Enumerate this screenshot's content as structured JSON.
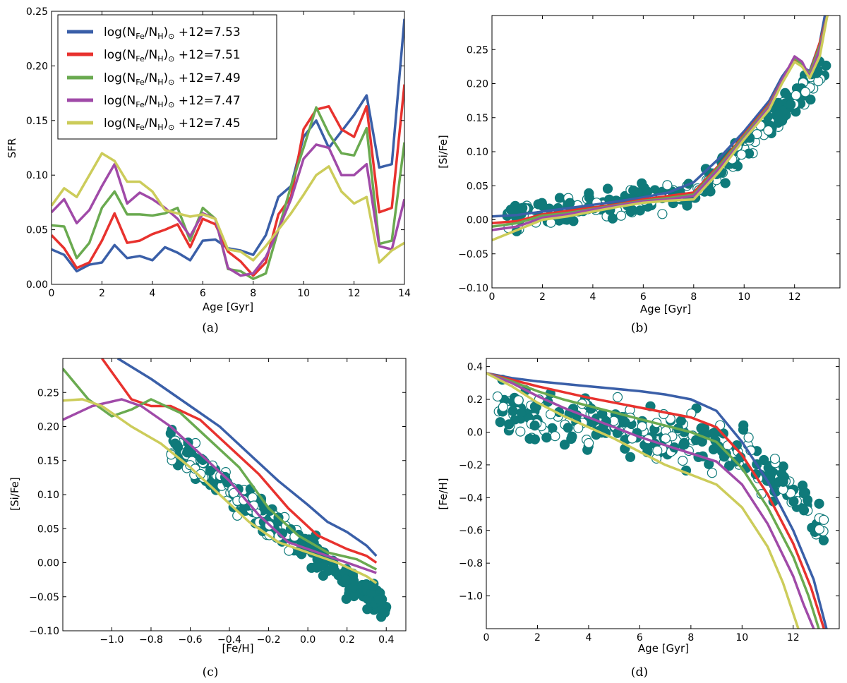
{
  "colors": {
    "blue": "#3a5fa8",
    "red": "#e8322e",
    "green": "#6aaa50",
    "purple": "#a04aa8",
    "yellow": "#cccc5a",
    "teal": "#0f7a7a"
  },
  "legend": {
    "prefix": "log(N",
    "entries": [
      {
        "value": "7.53",
        "color": "blue"
      },
      {
        "value": "7.51",
        "color": "red"
      },
      {
        "value": "7.49",
        "color": "green"
      },
      {
        "value": "7.47",
        "color": "purple"
      },
      {
        "value": "7.45",
        "color": "yellow"
      }
    ]
  },
  "chart_data": [
    {
      "id": "a",
      "caption": "(a)",
      "type": "line",
      "xlabel": "Age [Gyr]",
      "ylabel": "SFR",
      "xlim": [
        0,
        14
      ],
      "ylim": [
        0,
        0.25
      ],
      "xticks": [
        {
          "v": 0,
          "t": "0"
        },
        {
          "v": 2,
          "t": "2"
        },
        {
          "v": 4,
          "t": "4"
        },
        {
          "v": 6,
          "t": "6"
        },
        {
          "v": 8,
          "t": "8"
        },
        {
          "v": 10,
          "t": "10"
        },
        {
          "v": 12,
          "t": "12"
        },
        {
          "v": 14,
          "t": "14"
        }
      ],
      "yticks": [
        {
          "v": 0,
          "t": "0.00"
        },
        {
          "v": 0.05,
          "t": "0.05"
        },
        {
          "v": 0.1,
          "t": "0.10"
        },
        {
          "v": 0.15,
          "t": "0.15"
        },
        {
          "v": 0.2,
          "t": "0.20"
        },
        {
          "v": 0.25,
          "t": "0.25"
        }
      ],
      "legend_position": "top-left",
      "x": [
        0,
        0.5,
        1,
        1.5,
        2,
        2.5,
        3,
        3.5,
        4,
        4.5,
        5,
        5.5,
        6,
        6.5,
        7,
        7.5,
        8,
        8.5,
        9,
        9.5,
        10,
        10.5,
        11,
        11.5,
        12,
        12.5,
        13,
        13.5,
        14
      ],
      "series": [
        {
          "color": "blue",
          "values": [
            0.032,
            0.027,
            0.012,
            0.018,
            0.02,
            0.036,
            0.024,
            0.026,
            0.022,
            0.034,
            0.029,
            0.022,
            0.04,
            0.041,
            0.033,
            0.031,
            0.027,
            0.045,
            0.08,
            0.09,
            0.135,
            0.15,
            0.125,
            0.14,
            0.155,
            0.173,
            0.107,
            0.11,
            0.243
          ]
        },
        {
          "color": "red",
          "values": [
            0.045,
            0.033,
            0.015,
            0.02,
            0.04,
            0.065,
            0.038,
            0.04,
            0.046,
            0.05,
            0.055,
            0.034,
            0.06,
            0.055,
            0.03,
            0.021,
            0.008,
            0.02,
            0.064,
            0.08,
            0.142,
            0.16,
            0.163,
            0.142,
            0.135,
            0.163,
            0.066,
            0.07,
            0.183
          ]
        },
        {
          "color": "green",
          "values": [
            0.054,
            0.053,
            0.024,
            0.038,
            0.07,
            0.085,
            0.064,
            0.064,
            0.063,
            0.065,
            0.07,
            0.04,
            0.07,
            0.06,
            0.014,
            0.012,
            0.005,
            0.01,
            0.05,
            0.09,
            0.125,
            0.162,
            0.138,
            0.12,
            0.118,
            0.143,
            0.037,
            0.04,
            0.13
          ]
        },
        {
          "color": "purple",
          "values": [
            0.066,
            0.078,
            0.056,
            0.068,
            0.09,
            0.11,
            0.074,
            0.084,
            0.078,
            0.07,
            0.06,
            0.044,
            0.065,
            0.06,
            0.015,
            0.008,
            0.01,
            0.025,
            0.05,
            0.078,
            0.115,
            0.128,
            0.125,
            0.1,
            0.1,
            0.11,
            0.035,
            0.032,
            0.078
          ]
        },
        {
          "color": "yellow",
          "values": [
            0.072,
            0.088,
            0.08,
            0.1,
            0.12,
            0.113,
            0.094,
            0.094,
            0.085,
            0.068,
            0.065,
            0.062,
            0.064,
            0.06,
            0.032,
            0.03,
            0.022,
            0.035,
            0.05,
            0.065,
            0.082,
            0.1,
            0.108,
            0.085,
            0.074,
            0.08,
            0.02,
            0.031,
            0.038
          ]
        }
      ]
    },
    {
      "id": "b",
      "caption": "(b)",
      "type": "scatter",
      "xlabel": "Age [Gyr]",
      "ylabel": "[Si/Fe]",
      "xlim": [
        0,
        13.8
      ],
      "ylim": [
        -0.1,
        0.3
      ],
      "xticks": [
        {
          "v": 0,
          "t": "0"
        },
        {
          "v": 2,
          "t": "2"
        },
        {
          "v": 4,
          "t": "4"
        },
        {
          "v": 6,
          "t": "6"
        },
        {
          "v": 8,
          "t": "8"
        },
        {
          "v": 10,
          "t": "10"
        },
        {
          "v": 12,
          "t": "12"
        }
      ],
      "yticks": [
        {
          "v": -0.1,
          "t": "−0.10"
        },
        {
          "v": -0.05,
          "t": "−0.05"
        },
        {
          "v": 0,
          "t": "0.00"
        },
        {
          "v": 0.05,
          "t": "0.05"
        },
        {
          "v": 0.1,
          "t": "0.10"
        },
        {
          "v": 0.15,
          "t": "0.15"
        },
        {
          "v": 0.2,
          "t": "0.20"
        },
        {
          "v": 0.25,
          "t": "0.25"
        }
      ],
      "series": [
        {
          "color": "blue",
          "x": [
            0,
            1,
            2,
            3,
            4,
            5,
            6,
            7,
            8,
            9,
            10,
            11,
            11.5,
            12,
            12.3,
            12.6,
            13,
            13.2
          ],
          "values": [
            0.005,
            0.007,
            0.012,
            0.017,
            0.022,
            0.027,
            0.033,
            0.04,
            0.055,
            0.09,
            0.13,
            0.175,
            0.21,
            0.235,
            0.225,
            0.218,
            0.26,
            0.3
          ]
        },
        {
          "color": "red",
          "x": [
            0,
            1,
            2,
            3,
            4,
            5,
            6,
            7,
            8,
            9,
            10,
            11,
            11.5,
            12,
            12.3,
            12.6,
            13,
            13.3
          ],
          "values": [
            -0.005,
            -0.002,
            0.008,
            0.013,
            0.018,
            0.023,
            0.03,
            0.035,
            0.04,
            0.08,
            0.125,
            0.17,
            0.205,
            0.235,
            0.226,
            0.215,
            0.26,
            0.3
          ]
        },
        {
          "color": "green",
          "x": [
            0,
            1,
            2,
            3,
            4,
            5,
            6,
            7,
            8,
            9,
            10,
            11,
            11.5,
            12,
            12.3,
            12.6,
            13,
            13.3
          ],
          "values": [
            -0.01,
            -0.005,
            0.006,
            0.01,
            0.016,
            0.022,
            0.028,
            0.032,
            0.037,
            0.078,
            0.123,
            0.168,
            0.205,
            0.238,
            0.228,
            0.214,
            0.255,
            0.3
          ]
        },
        {
          "color": "purple",
          "x": [
            0,
            1,
            2,
            3,
            4,
            5,
            6,
            7,
            8,
            9,
            10,
            11,
            11.5,
            12,
            12.3,
            12.6,
            13,
            13.3
          ],
          "values": [
            -0.015,
            -0.01,
            0.003,
            0.008,
            0.015,
            0.021,
            0.027,
            0.03,
            0.035,
            0.075,
            0.12,
            0.166,
            0.205,
            0.24,
            0.232,
            0.21,
            0.25,
            0.3
          ]
        },
        {
          "color": "yellow",
          "x": [
            0,
            1,
            2,
            3,
            4,
            5,
            6,
            7,
            8,
            9,
            10,
            11,
            11.5,
            12,
            12.3,
            12.6,
            13,
            13.3
          ],
          "values": [
            -0.03,
            -0.015,
            0,
            0.005,
            0.012,
            0.019,
            0.025,
            0.028,
            0.03,
            0.07,
            0.118,
            0.162,
            0.2,
            0.232,
            0.225,
            0.208,
            0.24,
            0.3
          ]
        }
      ]
    },
    {
      "id": "c",
      "caption": "(c)",
      "type": "scatter",
      "xlabel": "[Fe/H]",
      "ylabel": "[Si/Fe]",
      "xlim": [
        -1.25,
        0.5
      ],
      "ylim": [
        -0.1,
        0.3
      ],
      "xticks": [
        {
          "v": -1.0,
          "t": "−1.0"
        },
        {
          "v": -0.8,
          "t": "−0.8"
        },
        {
          "v": -0.6,
          "t": "−0.6"
        },
        {
          "v": -0.4,
          "t": "−0.4"
        },
        {
          "v": -0.2,
          "t": "−0.2"
        },
        {
          "v": 0,
          "t": "0.0"
        },
        {
          "v": 0.2,
          "t": "0.2"
        },
        {
          "v": 0.4,
          "t": "0.4"
        }
      ],
      "yticks": [
        {
          "v": -0.1,
          "t": "−0.10"
        },
        {
          "v": -0.05,
          "t": "−0.05"
        },
        {
          "v": 0,
          "t": "0.00"
        },
        {
          "v": 0.05,
          "t": "0.05"
        },
        {
          "v": 0.1,
          "t": "0.10"
        },
        {
          "v": 0.15,
          "t": "0.15"
        },
        {
          "v": 0.2,
          "t": "0.20"
        },
        {
          "v": 0.25,
          "t": "0.25"
        }
      ],
      "series": [
        {
          "color": "blue",
          "x": [
            -0.97,
            -0.8,
            -0.6,
            -0.45,
            -0.3,
            -0.15,
            0,
            0.1,
            0.2,
            0.3,
            0.35
          ],
          "values": [
            0.3,
            0.27,
            0.23,
            0.2,
            0.16,
            0.12,
            0.085,
            0.06,
            0.045,
            0.025,
            0.01
          ]
        },
        {
          "color": "red",
          "x": [
            -1.05,
            -0.9,
            -0.8,
            -0.7,
            -0.55,
            -0.4,
            -0.25,
            -0.1,
            0.05,
            0.2,
            0.3,
            0.35
          ],
          "values": [
            0.3,
            0.24,
            0.23,
            0.23,
            0.21,
            0.17,
            0.13,
            0.08,
            0.04,
            0.02,
            0.01,
            0
          ]
        },
        {
          "color": "green",
          "x": [
            -1.25,
            -1.12,
            -1.0,
            -0.9,
            -0.8,
            -0.65,
            -0.5,
            -0.35,
            -0.2,
            -0.05,
            0.1,
            0.25,
            0.35
          ],
          "values": [
            0.285,
            0.24,
            0.215,
            0.225,
            0.24,
            0.22,
            0.18,
            0.14,
            0.08,
            0.04,
            0.015,
            0.005,
            -0.01
          ]
        },
        {
          "color": "purple",
          "x": [
            -1.25,
            -1.1,
            -0.95,
            -0.85,
            -0.7,
            -0.55,
            -0.4,
            -0.25,
            -0.1,
            0.05,
            0.2,
            0.35
          ],
          "values": [
            0.21,
            0.23,
            0.24,
            0.23,
            0.2,
            0.16,
            0.12,
            0.07,
            0.03,
            0.015,
            0,
            -0.015
          ]
        },
        {
          "color": "yellow",
          "x": [
            -1.25,
            -1.15,
            -1.05,
            -0.9,
            -0.75,
            -0.6,
            -0.45,
            -0.3,
            -0.15,
            0,
            0.15,
            0.3,
            0.35
          ],
          "values": [
            0.238,
            0.24,
            0.23,
            0.2,
            0.175,
            0.14,
            0.1,
            0.06,
            0.03,
            0.015,
            0,
            -0.02,
            -0.03
          ]
        }
      ]
    },
    {
      "id": "d",
      "caption": "(d)",
      "type": "scatter",
      "xlabel": "Age [Gyr]",
      "ylabel": "[Fe/H]",
      "xlim": [
        0,
        13.8
      ],
      "ylim": [
        -1.2,
        0.45
      ],
      "xticks": [
        {
          "v": 0,
          "t": "0"
        },
        {
          "v": 2,
          "t": "2"
        },
        {
          "v": 4,
          "t": "4"
        },
        {
          "v": 6,
          "t": "6"
        },
        {
          "v": 8,
          "t": "8"
        },
        {
          "v": 10,
          "t": "10"
        },
        {
          "v": 12,
          "t": "12"
        }
      ],
      "yticks": [
        {
          "v": -1.0,
          "t": "−1.0"
        },
        {
          "v": -0.8,
          "t": "−0.8"
        },
        {
          "v": -0.6,
          "t": "−0.6"
        },
        {
          "v": -0.4,
          "t": "−0.4"
        },
        {
          "v": -0.2,
          "t": "−0.2"
        },
        {
          "v": 0,
          "t": "0.0"
        },
        {
          "v": 0.2,
          "t": "0.2"
        },
        {
          "v": 0.4,
          "t": "0.4"
        }
      ],
      "series": [
        {
          "color": "blue",
          "x": [
            0,
            1,
            2,
            3,
            4,
            5,
            6,
            7,
            8,
            9,
            10,
            11,
            12,
            12.8,
            13.3
          ],
          "values": [
            0.36,
            0.33,
            0.31,
            0.295,
            0.28,
            0.265,
            0.25,
            0.23,
            0.2,
            0.13,
            -0.06,
            -0.3,
            -0.6,
            -0.9,
            -1.2
          ]
        },
        {
          "color": "red",
          "x": [
            0,
            1,
            2,
            3,
            4,
            5,
            6,
            7,
            8,
            9,
            10,
            11,
            12,
            12.7,
            13.2
          ],
          "values": [
            0.36,
            0.32,
            0.28,
            0.245,
            0.21,
            0.18,
            0.15,
            0.12,
            0.09,
            0.03,
            -0.14,
            -0.38,
            -0.68,
            -0.95,
            -1.2
          ]
        },
        {
          "color": "green",
          "x": [
            0,
            1,
            2,
            3,
            4,
            5,
            6,
            7,
            8,
            9,
            10,
            11,
            12,
            12.6,
            13.0
          ],
          "values": [
            0.36,
            0.31,
            0.25,
            0.2,
            0.16,
            0.12,
            0.08,
            0.04,
            0.0,
            -0.06,
            -0.22,
            -0.46,
            -0.76,
            -1.0,
            -1.2
          ]
        },
        {
          "color": "purple",
          "x": [
            0,
            1,
            2,
            3,
            4,
            5,
            6,
            7,
            8,
            9,
            10,
            11,
            12,
            12.4,
            12.8
          ],
          "values": [
            0.36,
            0.3,
            0.22,
            0.15,
            0.09,
            0.03,
            -0.03,
            -0.08,
            -0.13,
            -0.18,
            -0.32,
            -0.56,
            -0.88,
            -1.05,
            -1.2
          ]
        },
        {
          "color": "yellow",
          "x": [
            0,
            1,
            2,
            3,
            4,
            5,
            6,
            7,
            8,
            9,
            10,
            11,
            11.6,
            12.2
          ],
          "values": [
            0.36,
            0.28,
            0.18,
            0.1,
            0.03,
            -0.04,
            -0.12,
            -0.2,
            -0.26,
            -0.32,
            -0.46,
            -0.7,
            -0.92,
            -1.2
          ]
        }
      ]
    }
  ]
}
